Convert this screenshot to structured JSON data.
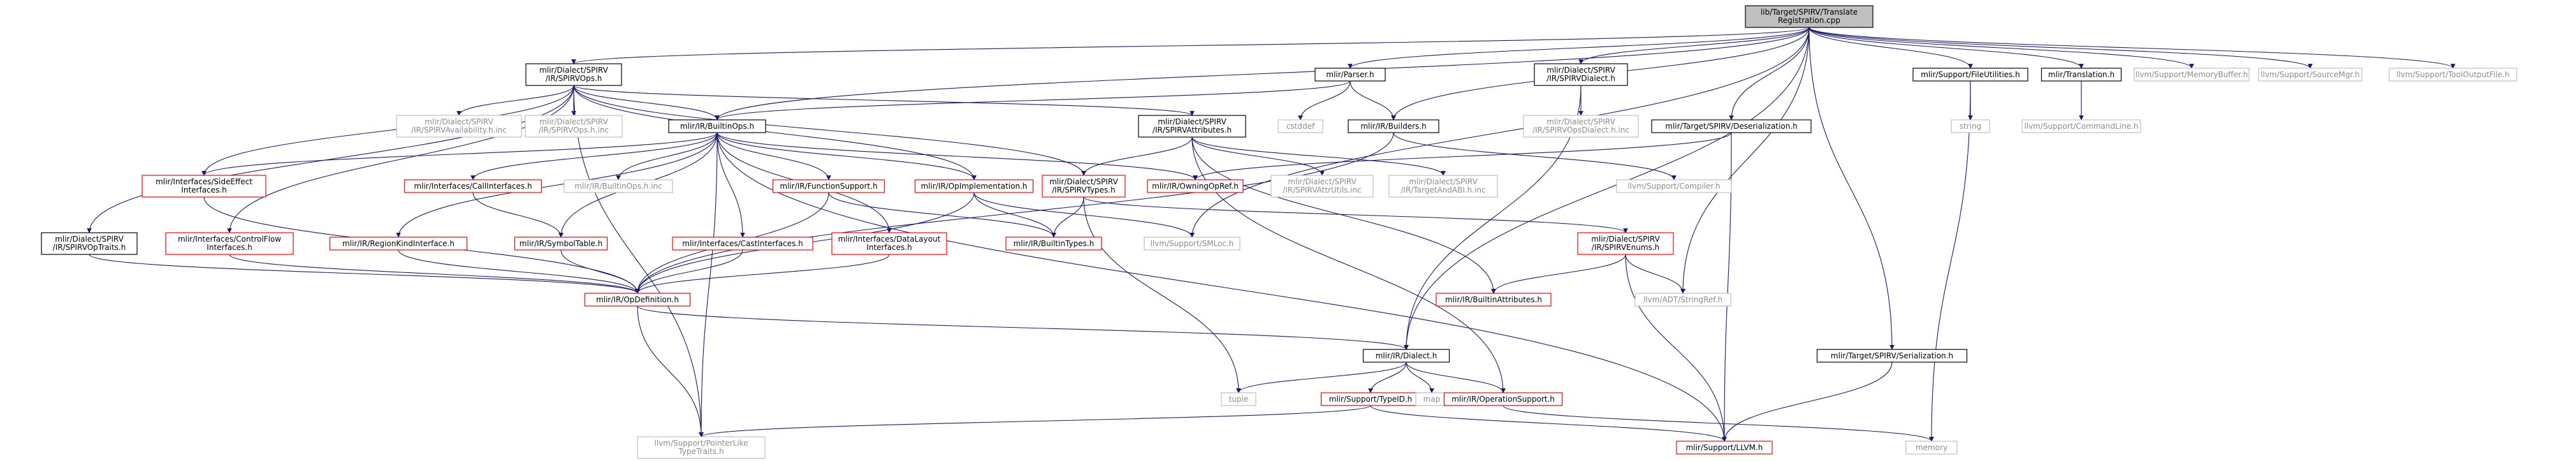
{
  "colors": {
    "background": "#ffffff",
    "root_fill": "#bfbfbf",
    "node_border_black": "#000000",
    "node_border_red": "#ff0000",
    "node_border_gray": "#bfbfbf",
    "text_black": "#000000",
    "text_gray": "#8c8c8c",
    "edge_color": "#191970",
    "edge_light": "#a9a9a9"
  },
  "nodes": [
    {
      "id": "root",
      "lines": [
        "lib/Target/SPIRV/Translate",
        "Registration.cpp"
      ],
      "style": "root"
    },
    {
      "id": "spirvops",
      "lines": [
        "mlir/Dialect/SPIRV",
        "/IR/SPIRVOps.h"
      ],
      "style": "black"
    },
    {
      "id": "parser",
      "lines": [
        "mlir/Parser.h"
      ],
      "style": "black"
    },
    {
      "id": "spirvdialect",
      "lines": [
        "mlir/Dialect/SPIRV",
        "/IR/SPIRVDialect.h"
      ],
      "style": "black"
    },
    {
      "id": "fileutil",
      "lines": [
        "mlir/Support/FileUtilities.h"
      ],
      "style": "black"
    },
    {
      "id": "translation",
      "lines": [
        "mlir/Translation.h"
      ],
      "style": "black"
    },
    {
      "id": "membuf",
      "lines": [
        "llvm/Support/MemoryBuffer.h"
      ],
      "style": "gray"
    },
    {
      "id": "srcmgr",
      "lines": [
        "llvm/Support/SourceMgr.h"
      ],
      "style": "gray"
    },
    {
      "id": "tooloutput",
      "lines": [
        "llvm/Support/ToolOutputFile.h"
      ],
      "style": "gray"
    },
    {
      "id": "availability",
      "lines": [
        "mlir/Dialect/SPIRV",
        "/IR/SPIRVAvailability.h.inc"
      ],
      "style": "gray"
    },
    {
      "id": "opsinc",
      "lines": [
        "mlir/Dialect/SPIRV",
        "/IR/SPIRVOps.h.inc"
      ],
      "style": "gray"
    },
    {
      "id": "builtinops",
      "lines": [
        "mlir/IR/BuiltinOps.h"
      ],
      "style": "black"
    },
    {
      "id": "spirvattrs",
      "lines": [
        "mlir/Dialect/SPIRV",
        "/IR/SPIRVAttributes.h"
      ],
      "style": "black"
    },
    {
      "id": "cstddef",
      "lines": [
        "cstddef"
      ],
      "style": "gray"
    },
    {
      "id": "builders",
      "lines": [
        "mlir/IR/Builders.h"
      ],
      "style": "black"
    },
    {
      "id": "opsdialectinc",
      "lines": [
        "mlir/Dialect/SPIRV",
        "/IR/SPIRVOpsDialect.h.inc"
      ],
      "style": "gray"
    },
    {
      "id": "deserialization",
      "lines": [
        "mlir/Target/SPIRV/Deserialization.h"
      ],
      "style": "black"
    },
    {
      "id": "stringh",
      "lines": [
        "string"
      ],
      "style": "gray"
    },
    {
      "id": "cmdline",
      "lines": [
        "llvm/Support/CommandLine.h"
      ],
      "style": "gray"
    },
    {
      "id": "sideeffect",
      "lines": [
        "mlir/Interfaces/SideEffect",
        "Interfaces.h"
      ],
      "style": "red"
    },
    {
      "id": "callif",
      "lines": [
        "mlir/Interfaces/CallInterfaces.h"
      ],
      "style": "red"
    },
    {
      "id": "builtinopsinc",
      "lines": [
        "mlir/IR/BuiltinOps.h.inc"
      ],
      "style": "gray"
    },
    {
      "id": "funcsupport",
      "lines": [
        "mlir/IR/FunctionSupport.h"
      ],
      "style": "red"
    },
    {
      "id": "opimpl",
      "lines": [
        "mlir/IR/OpImplementation.h"
      ],
      "style": "red"
    },
    {
      "id": "spirvtypes",
      "lines": [
        "mlir/Dialect/SPIRV",
        "/IR/SPIRVTypes.h"
      ],
      "style": "red"
    },
    {
      "id": "owningopref",
      "lines": [
        "mlir/IR/OwningOpRef.h"
      ],
      "style": "red"
    },
    {
      "id": "attrutils",
      "lines": [
        "mlir/Dialect/SPIRV",
        "/IR/SPIRVAttrUtils.inc"
      ],
      "style": "gray"
    },
    {
      "id": "targetabi",
      "lines": [
        "mlir/Dialect/SPIRV",
        "/IR/TargetAndABI.h.inc"
      ],
      "style": "gray"
    },
    {
      "id": "compiler",
      "lines": [
        "llvm/Support/Compiler.h"
      ],
      "style": "gray"
    },
    {
      "id": "optraits",
      "lines": [
        "mlir/Dialect/SPIRV",
        "/IR/SPIRVOpTraits.h"
      ],
      "style": "black"
    },
    {
      "id": "controlflow",
      "lines": [
        "mlir/Interfaces/ControlFlow",
        "Interfaces.h"
      ],
      "style": "red"
    },
    {
      "id": "regionkind",
      "lines": [
        "mlir/IR/RegionKindInterface.h"
      ],
      "style": "red"
    },
    {
      "id": "symboltable",
      "lines": [
        "mlir/IR/SymbolTable.h"
      ],
      "style": "red"
    },
    {
      "id": "castif",
      "lines": [
        "mlir/Interfaces/CastInterfaces.h"
      ],
      "style": "red"
    },
    {
      "id": "datalayout",
      "lines": [
        "mlir/Interfaces/DataLayout",
        "Interfaces.h"
      ],
      "style": "red"
    },
    {
      "id": "builtintypes",
      "lines": [
        "mlir/IR/BuiltinTypes.h"
      ],
      "style": "red"
    },
    {
      "id": "smloc",
      "lines": [
        "llvm/Support/SMLoc.h"
      ],
      "style": "gray"
    },
    {
      "id": "spirvenums",
      "lines": [
        "mlir/Dialect/SPIRV",
        "/IR/SPIRVEnums.h"
      ],
      "style": "red"
    },
    {
      "id": "builtinattrs",
      "lines": [
        "mlir/IR/BuiltinAttributes.h"
      ],
      "style": "red"
    },
    {
      "id": "stringref",
      "lines": [
        "llvm/ADT/StringRef.h"
      ],
      "style": "gray"
    },
    {
      "id": "opdef",
      "lines": [
        "mlir/IR/OpDefinition.h"
      ],
      "style": "red"
    },
    {
      "id": "dialect",
      "lines": [
        "mlir/IR/Dialect.h"
      ],
      "style": "black"
    },
    {
      "id": "serialization",
      "lines": [
        "mlir/Target/SPIRV/Serialization.h"
      ],
      "style": "black"
    },
    {
      "id": "tuple",
      "lines": [
        "tuple"
      ],
      "style": "gray"
    },
    {
      "id": "typeid",
      "lines": [
        "mlir/Support/TypeID.h"
      ],
      "style": "red"
    },
    {
      "id": "maph",
      "lines": [
        "map"
      ],
      "style": "gray"
    },
    {
      "id": "opsupport",
      "lines": [
        "mlir/IR/OperationSupport.h"
      ],
      "style": "red"
    },
    {
      "id": "ptrlike",
      "lines": [
        "llvm/Support/PointerLike",
        "TypeTraits.h"
      ],
      "style": "gray"
    },
    {
      "id": "llvmh",
      "lines": [
        "mlir/Support/LLVM.h"
      ],
      "style": "red"
    },
    {
      "id": "memory",
      "lines": [
        "memory"
      ],
      "style": "gray"
    }
  ],
  "edges": [
    [
      "root",
      "spirvops"
    ],
    [
      "root",
      "parser"
    ],
    [
      "root",
      "spirvdialect"
    ],
    [
      "root",
      "fileutil"
    ],
    [
      "root",
      "translation"
    ],
    [
      "root",
      "membuf"
    ],
    [
      "root",
      "srcmgr"
    ],
    [
      "root",
      "tooloutput"
    ],
    [
      "root",
      "builtinops"
    ],
    [
      "root",
      "builders"
    ],
    [
      "root",
      "deserialization"
    ],
    [
      "root",
      "serialization"
    ],
    [
      "root",
      "smloc"
    ],
    [
      "root",
      "stringref"
    ],
    [
      "root",
      "dialect"
    ],
    [
      "spirvops",
      "availability"
    ],
    [
      "spirvops",
      "opsinc"
    ],
    [
      "spirvops",
      "builtinops"
    ],
    [
      "spirvops",
      "spirvattrs"
    ],
    [
      "spirvops",
      "sideeffect"
    ],
    [
      "spirvops",
      "optraits"
    ],
    [
      "spirvops",
      "controlflow"
    ],
    [
      "spirvops",
      "opimpl"
    ],
    [
      "spirvops",
      "spirvtypes"
    ],
    [
      "spirvops",
      "ptrlike"
    ],
    [
      "parser",
      "builtinops"
    ],
    [
      "parser",
      "cstddef"
    ],
    [
      "parser",
      "builders"
    ],
    [
      "spirvdialect",
      "opsdialectinc"
    ],
    [
      "spirvdialect",
      "dialect"
    ],
    [
      "fileutil",
      "stringh"
    ],
    [
      "fileutil",
      "memory"
    ],
    [
      "translation",
      "cmdline"
    ],
    [
      "builtinops",
      "sideeffect"
    ],
    [
      "builtinops",
      "callif"
    ],
    [
      "builtinops",
      "builtinopsinc"
    ],
    [
      "builtinops",
      "funcsupport"
    ],
    [
      "builtinops",
      "opimpl"
    ],
    [
      "builtinops",
      "owningopref"
    ],
    [
      "builtinops",
      "regionkind"
    ],
    [
      "builtinops",
      "symboltable"
    ],
    [
      "builtinops",
      "castif"
    ],
    [
      "builtinops",
      "datalayout"
    ],
    [
      "builtinops",
      "llvmh"
    ],
    [
      "builtinops",
      "ptrlike"
    ],
    [
      "spirvattrs",
      "spirvtypes"
    ],
    [
      "spirvattrs",
      "attrutils"
    ],
    [
      "spirvattrs",
      "targetabi"
    ],
    [
      "spirvattrs",
      "builtinattrs"
    ],
    [
      "spirvattrs",
      "opsupport"
    ],
    [
      "builders",
      "opdef"
    ],
    [
      "builders",
      "compiler"
    ],
    [
      "deserialization",
      "owningopref"
    ],
    [
      "deserialization",
      "llvmh"
    ],
    [
      "sideeffect",
      "opdef"
    ],
    [
      "callif",
      "symboltable"
    ],
    [
      "funcsupport",
      "opdef"
    ],
    [
      "funcsupport",
      "builtintypes"
    ],
    [
      "opimpl",
      "builtintypes"
    ],
    [
      "opimpl",
      "smloc"
    ],
    [
      "opimpl",
      "opdef"
    ],
    [
      "spirvtypes",
      "builtintypes"
    ],
    [
      "spirvtypes",
      "spirvenums"
    ],
    [
      "spirvtypes",
      "tuple"
    ],
    [
      "optraits",
      "opdef"
    ],
    [
      "controlflow",
      "opdef"
    ],
    [
      "regionkind",
      "opdef"
    ],
    [
      "symboltable",
      "opdef"
    ],
    [
      "castif",
      "opdef"
    ],
    [
      "datalayout",
      "opdef"
    ],
    [
      "spirvenums",
      "builtinattrs"
    ],
    [
      "spirvenums",
      "stringref"
    ],
    [
      "spirvenums",
      "llvmh"
    ],
    [
      "opdef",
      "dialect"
    ],
    [
      "opdef",
      "ptrlike"
    ],
    [
      "dialect",
      "tuple"
    ],
    [
      "dialect",
      "typeid"
    ],
    [
      "dialect",
      "maph"
    ],
    [
      "dialect",
      "opsupport"
    ],
    [
      "typeid",
      "ptrlike"
    ],
    [
      "typeid",
      "llvmh"
    ],
    [
      "opsupport",
      "memory"
    ],
    [
      "serialization",
      "llvmh"
    ]
  ]
}
